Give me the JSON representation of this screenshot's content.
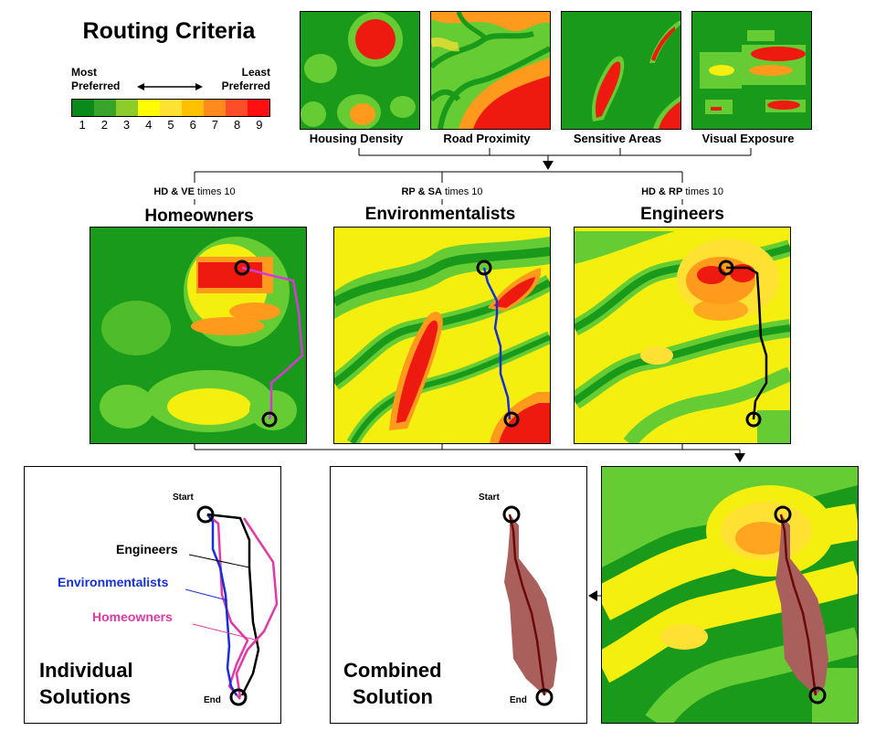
{
  "header": {
    "title": "Routing Criteria"
  },
  "legend": {
    "left_label": "Most\nPreferred",
    "right_label": "Least\nPreferred",
    "colors": [
      "#0b8a1c",
      "#38a52a",
      "#8ccb2a",
      "#fffb00",
      "#ffe133",
      "#ffc000",
      "#ff8a1f",
      "#ff4d2a",
      "#ff1010"
    ],
    "numbers": [
      "1",
      "2",
      "3",
      "4",
      "5",
      "6",
      "7",
      "8",
      "9"
    ]
  },
  "criteria": [
    {
      "label": "Housing Density"
    },
    {
      "label": "Road Proximity"
    },
    {
      "label": "Sensitive Areas"
    },
    {
      "label": "Visual Exposure"
    }
  ],
  "groups": [
    {
      "note_keys": "HD & VE",
      "note_rest": "times 10",
      "title": "Homeowners",
      "route_color": "#d63ad6"
    },
    {
      "note_keys": "RP & SA",
      "note_rest": "times 10",
      "title": "Environmentalists",
      "route_color": "#1530d8"
    },
    {
      "note_keys": "HD & RP",
      "note_rest": "times 10",
      "title": "Engineers",
      "route_color": "#000000"
    }
  ],
  "individual": {
    "title_line1": "Individual",
    "title_line2": "Solutions",
    "start": "Start",
    "end": "End",
    "labels": {
      "engineers": "Engineers",
      "environmentalists": "Environmentalists",
      "homeowners": "Homeowners"
    },
    "colors": {
      "engineers": "#000000",
      "environmentalists": "#1530d8",
      "homeowners": "#e03aa6"
    }
  },
  "combined": {
    "title_line1": "Combined",
    "title_line2": "Solution",
    "start": "Start",
    "end": "End",
    "corridor_color": "#a9605d",
    "route_color": "#6b0a0a"
  },
  "palette": {
    "dark_green": "#1a9a1a",
    "light_green": "#66cc33",
    "yellow": "#f5ef10",
    "orange": "#ff9a1c",
    "red": "#ee1a10"
  }
}
